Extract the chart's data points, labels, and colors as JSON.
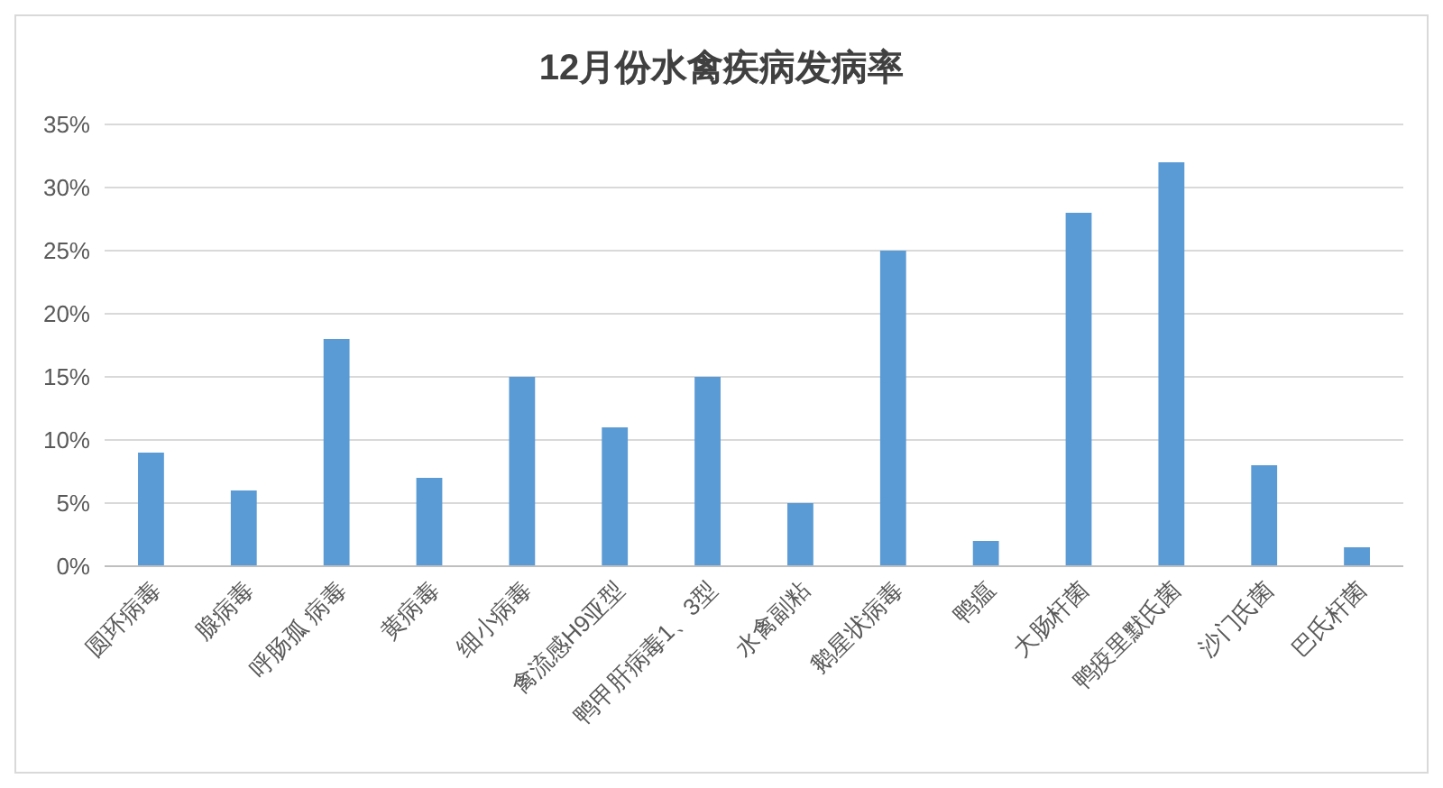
{
  "chart_data": {
    "type": "bar",
    "title": "12月份水禽疾病发病率",
    "categories": [
      "圆环病毒",
      "腺病毒",
      "呼肠孤 病毒",
      "黄病毒",
      "细小病毒",
      "禽流感H9亚型",
      "鸭甲肝病毒1、3型",
      "水禽副粘",
      "鹅星状病毒",
      "鸭瘟",
      "大肠杆菌",
      "鸭疫里默氏菌",
      "沙门氏菌",
      "巴氏杆菌"
    ],
    "values": [
      9,
      6,
      18,
      7,
      15,
      11,
      15,
      5,
      25,
      2,
      28,
      32,
      8,
      1.5
    ],
    "color": "#5b9bd5",
    "ylim": [
      0,
      35
    ],
    "yticks": [
      {
        "value": 0,
        "label": "0%"
      },
      {
        "value": 5,
        "label": "5%"
      },
      {
        "value": 10,
        "label": "10%"
      },
      {
        "value": 15,
        "label": "15%"
      },
      {
        "value": 20,
        "label": "20%"
      },
      {
        "value": 25,
        "label": "25%"
      },
      {
        "value": 30,
        "label": "30%"
      },
      {
        "value": 35,
        "label": "35%"
      }
    ],
    "grid": "y"
  }
}
